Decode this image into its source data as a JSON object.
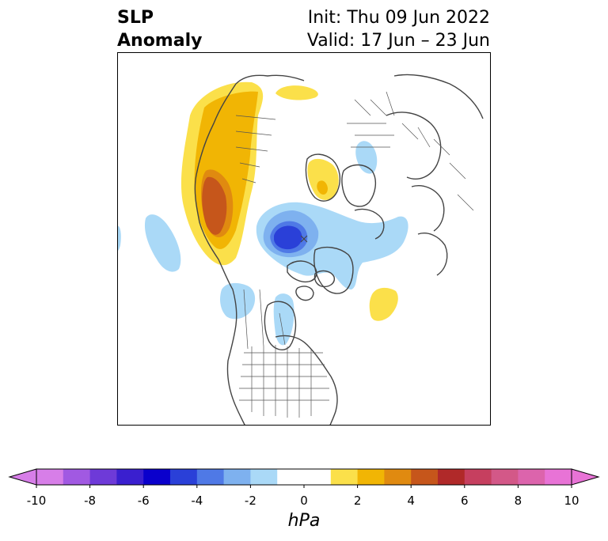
{
  "header": {
    "title_line1": "SLP",
    "title_line2": "Anomaly",
    "init_text": "Init: Thu 09 Jun 2022",
    "valid_text": "Valid: 17 Jun – 23 Jun"
  },
  "colorbar": {
    "units": "hPa",
    "tick_labels": [
      "-10",
      "-8",
      "-6",
      "-4",
      "-2",
      "0",
      "2",
      "4",
      "6",
      "8",
      "10"
    ],
    "colors": [
      "#d77ee8",
      "#a159e2",
      "#6e3ad8",
      "#3a1fcf",
      "#0a00cc",
      "#2a40d8",
      "#4f79e6",
      "#7eb1ef",
      "#aad9f7",
      "#ffffff",
      "#ffffff",
      "#fbe04a",
      "#f1b504",
      "#e08a10",
      "#c6561b",
      "#b02929",
      "#c63f5f",
      "#d35888",
      "#dc64ac",
      "#e873d6"
    ],
    "extend_low_color": "#d77ee8",
    "extend_high_color": "#e873d6"
  }
}
